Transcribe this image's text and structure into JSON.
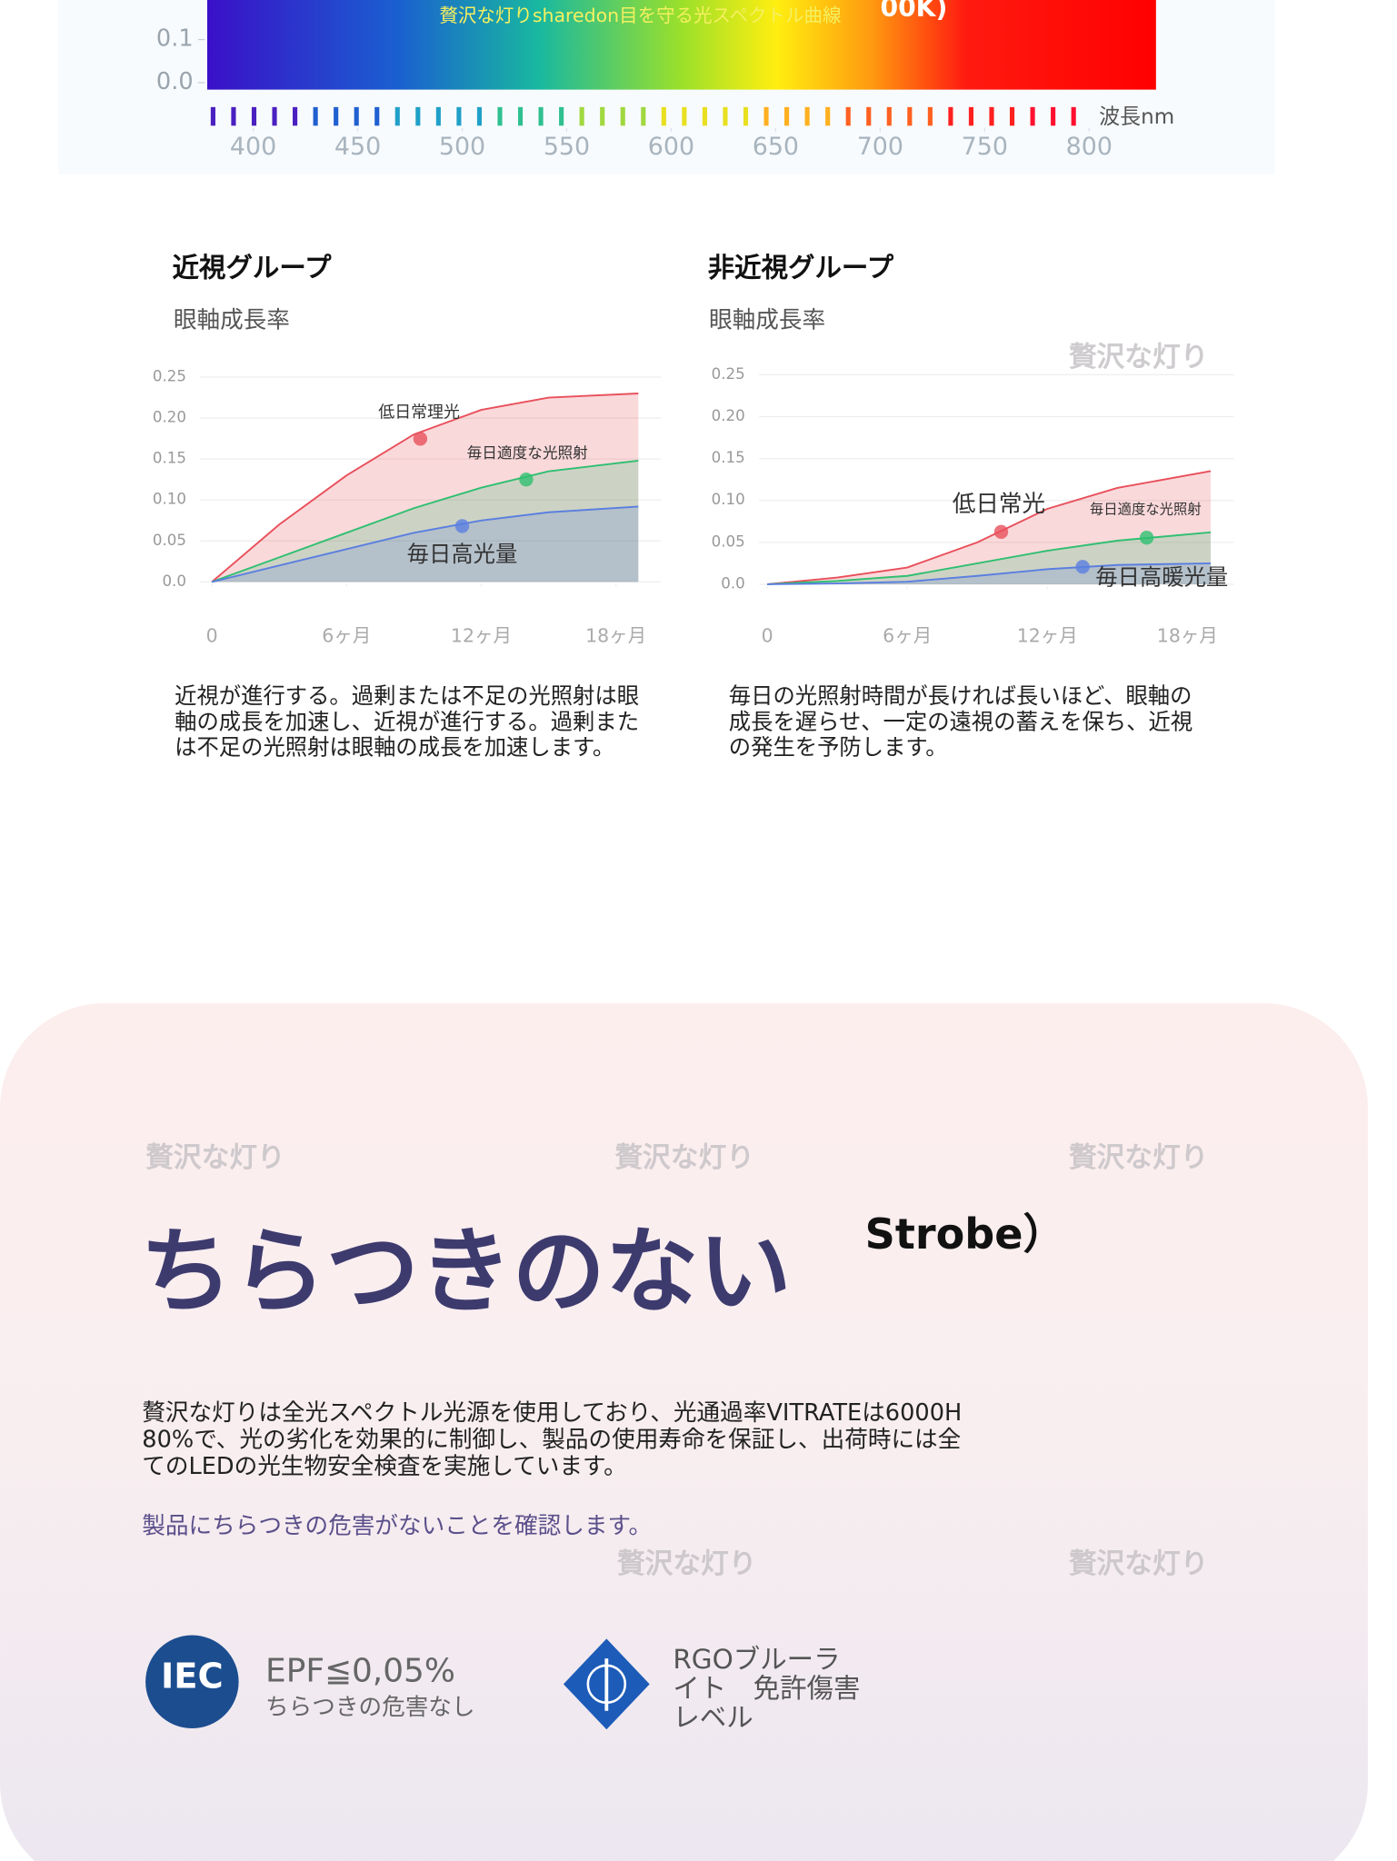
{
  "chart_data": [
    {
      "type": "spectrum",
      "title": "贅沢な灯りsharedon目を守る光スペクトル曲線",
      "annotation": "00K)",
      "xlabel": "波長nm",
      "xlim": [
        378,
        832
      ],
      "xticks": [
        400,
        450,
        500,
        550,
        600,
        650,
        700,
        750,
        800
      ],
      "ylim": [
        0,
        0.19
      ],
      "yticks": [
        {
          "value": 0,
          "label": "0.0"
        },
        0.1
      ]
    },
    {
      "type": "line",
      "title": "近視グループ",
      "ylabel": "眼軸成長率",
      "xlim": [
        -1,
        20
      ],
      "xticks": [
        0,
        {
          "value": 6,
          "label": "6ヶ月"
        },
        {
          "value": 12,
          "label": "12ヶ月"
        },
        {
          "value": 18,
          "label": "18ヶ月"
        }
      ],
      "ylim": [
        0,
        0.25
      ],
      "yticks": [
        0.25,
        {
          "value": 0.2,
          "label": "0.20"
        },
        0.15,
        {
          "value": 0.1,
          "label": "0.10"
        },
        0.05,
        {
          "value": 0,
          "label": "0.0"
        }
      ],
      "series": [
        {
          "name": "低日常理光",
          "color": "#e8505b",
          "x": [
            0,
            3,
            6,
            9,
            12,
            15,
            19
          ],
          "values": [
            0,
            0.07,
            0.13,
            0.18,
            0.21,
            0.225,
            0.23
          ]
        },
        {
          "name": "毎日適度な光照射",
          "color": "#2fbf71",
          "x": [
            0,
            3,
            6,
            9,
            12,
            15,
            19
          ],
          "values": [
            0,
            0.03,
            0.06,
            0.09,
            0.115,
            0.135,
            0.148
          ]
        },
        {
          "name": "毎日高光量",
          "color": "#5b7fe0",
          "x": [
            0,
            3,
            6,
            9,
            12,
            15,
            19
          ],
          "values": [
            0,
            0.02,
            0.04,
            0.06,
            0.075,
            0.085,
            0.092
          ]
        }
      ],
      "description": [
        "近視が進行する。過剰または不足の光照射は眼",
        "軸の成長を加速し、近視が進行する。過剰また",
        "は不足の光照射は眼軸の成長を加速します。"
      ]
    },
    {
      "type": "line",
      "title": "非近視グループ",
      "ylabel": "眼軸成長率",
      "xlim": [
        -1,
        20
      ],
      "xticks": [
        0,
        {
          "value": 6,
          "label": "6ヶ月"
        },
        {
          "value": 12,
          "label": "12ヶ月"
        },
        {
          "value": 18,
          "label": "18ヶ月"
        }
      ],
      "ylim": [
        0,
        0.25
      ],
      "yticks": [
        0.25,
        {
          "value": 0.2,
          "label": "0.20"
        },
        0.15,
        {
          "value": 0.1,
          "label": "0.10"
        },
        0.05,
        {
          "value": 0,
          "label": "0.0"
        }
      ],
      "series": [
        {
          "name": "低日常光",
          "color": "#e8505b",
          "x": [
            0,
            3,
            6,
            9,
            12,
            15,
            19
          ],
          "values": [
            0,
            0.008,
            0.02,
            0.05,
            0.09,
            0.115,
            0.135
          ]
        },
        {
          "name": "毎日適度な光照射",
          "color": "#2fbf71",
          "x": [
            0,
            3,
            6,
            9,
            12,
            15,
            19
          ],
          "values": [
            0,
            0.004,
            0.01,
            0.025,
            0.04,
            0.052,
            0.062
          ]
        },
        {
          "name": "毎日高暖光量",
          "color": "#5b7fe0",
          "x": [
            0,
            3,
            6,
            9,
            12,
            15,
            19
          ],
          "values": [
            0,
            0.001,
            0.003,
            0.01,
            0.018,
            0.023,
            0.025
          ]
        }
      ],
      "description": [
        "毎日の光照射時間が長ければ長いほど、眼軸の",
        "成長を遅らせ、一定の遠視の蓄えを保ち、近視",
        "の発生を予防します。"
      ]
    }
  ],
  "watermarks": [
    "贅沢な灯り",
    "贅沢な灯り",
    "贅沢な灯り",
    "贅沢な灯り",
    "贅沢な灯り",
    "贅沢な灯り"
  ],
  "flicker": {
    "heading": "ちらつきのない",
    "strobe": "Strobe）",
    "paragraph": [
      "贅沢な灯りは全光スペクトル光源を使用しており、光通過率VITRATEは6000H",
      "80%で、光の劣化を効果的に制御し、製品の使用寿命を保証し、出荷時には全",
      "てのLEDの光生物安全検査を実施しています。"
    ],
    "assurance": "製品にちらつきの危害がないことを確認します。",
    "badges": [
      {
        "icon": "IEC",
        "title": "EPF≦0,05%",
        "subtitle": "ちらつきの危害なし"
      },
      {
        "lines": [
          "RGOブルーラ",
          "イト　免許傷害",
          "レベル"
        ]
      }
    ]
  }
}
